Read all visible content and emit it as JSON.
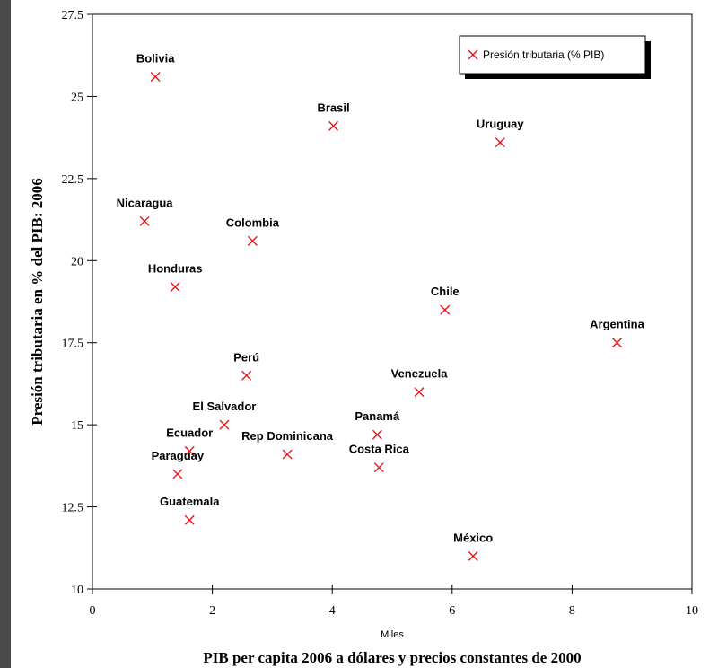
{
  "chart_data": {
    "type": "scatter",
    "title": "",
    "xlabel": "PIB per capita 2006  a dólares y precios constantes de 2000",
    "x_unit_label": "Miles",
    "ylabel": "Presión tributaria en % del PIB: 2006",
    "xlim": [
      0,
      10
    ],
    "ylim": [
      10,
      27.5
    ],
    "x_ticks": [
      "0",
      "2",
      "4",
      "6",
      "8",
      "10"
    ],
    "y_ticks": [
      "10",
      "12.5",
      "15",
      "17.5",
      "20",
      "22.5",
      "25",
      "27.5"
    ],
    "grid": false,
    "legend_position": "top-right",
    "marker_color": "#e8141c",
    "series": [
      {
        "name": "Presión tributaria (% PIB)",
        "marker": "x",
        "points": [
          {
            "label": "Bolivia",
            "x": 1.05,
            "y": 25.6
          },
          {
            "label": "Brasil",
            "x": 4.02,
            "y": 24.1
          },
          {
            "label": "Uruguay",
            "x": 6.8,
            "y": 23.6
          },
          {
            "label": "Nicaragua",
            "x": 0.87,
            "y": 21.2
          },
          {
            "label": "Colombia",
            "x": 2.67,
            "y": 20.6
          },
          {
            "label": "Honduras",
            "x": 1.38,
            "y": 19.2
          },
          {
            "label": "Chile",
            "x": 5.88,
            "y": 18.5
          },
          {
            "label": "Argentina",
            "x": 8.75,
            "y": 17.5
          },
          {
            "label": "Perú",
            "x": 2.57,
            "y": 16.5
          },
          {
            "label": "Venezuela",
            "x": 5.45,
            "y": 16.0
          },
          {
            "label": "El Salvador",
            "x": 2.2,
            "y": 15.0
          },
          {
            "label": "Panamá",
            "x": 4.75,
            "y": 14.7
          },
          {
            "label": "Ecuador",
            "x": 1.62,
            "y": 14.2
          },
          {
            "label": "Rep Dominicana",
            "x": 3.25,
            "y": 14.1
          },
          {
            "label": "Costa Rica",
            "x": 4.78,
            "y": 13.7
          },
          {
            "label": "Paraguay",
            "x": 1.42,
            "y": 13.5
          },
          {
            "label": "Guatemala",
            "x": 1.62,
            "y": 12.1
          },
          {
            "label": "México",
            "x": 6.35,
            "y": 11.0
          }
        ]
      }
    ]
  }
}
